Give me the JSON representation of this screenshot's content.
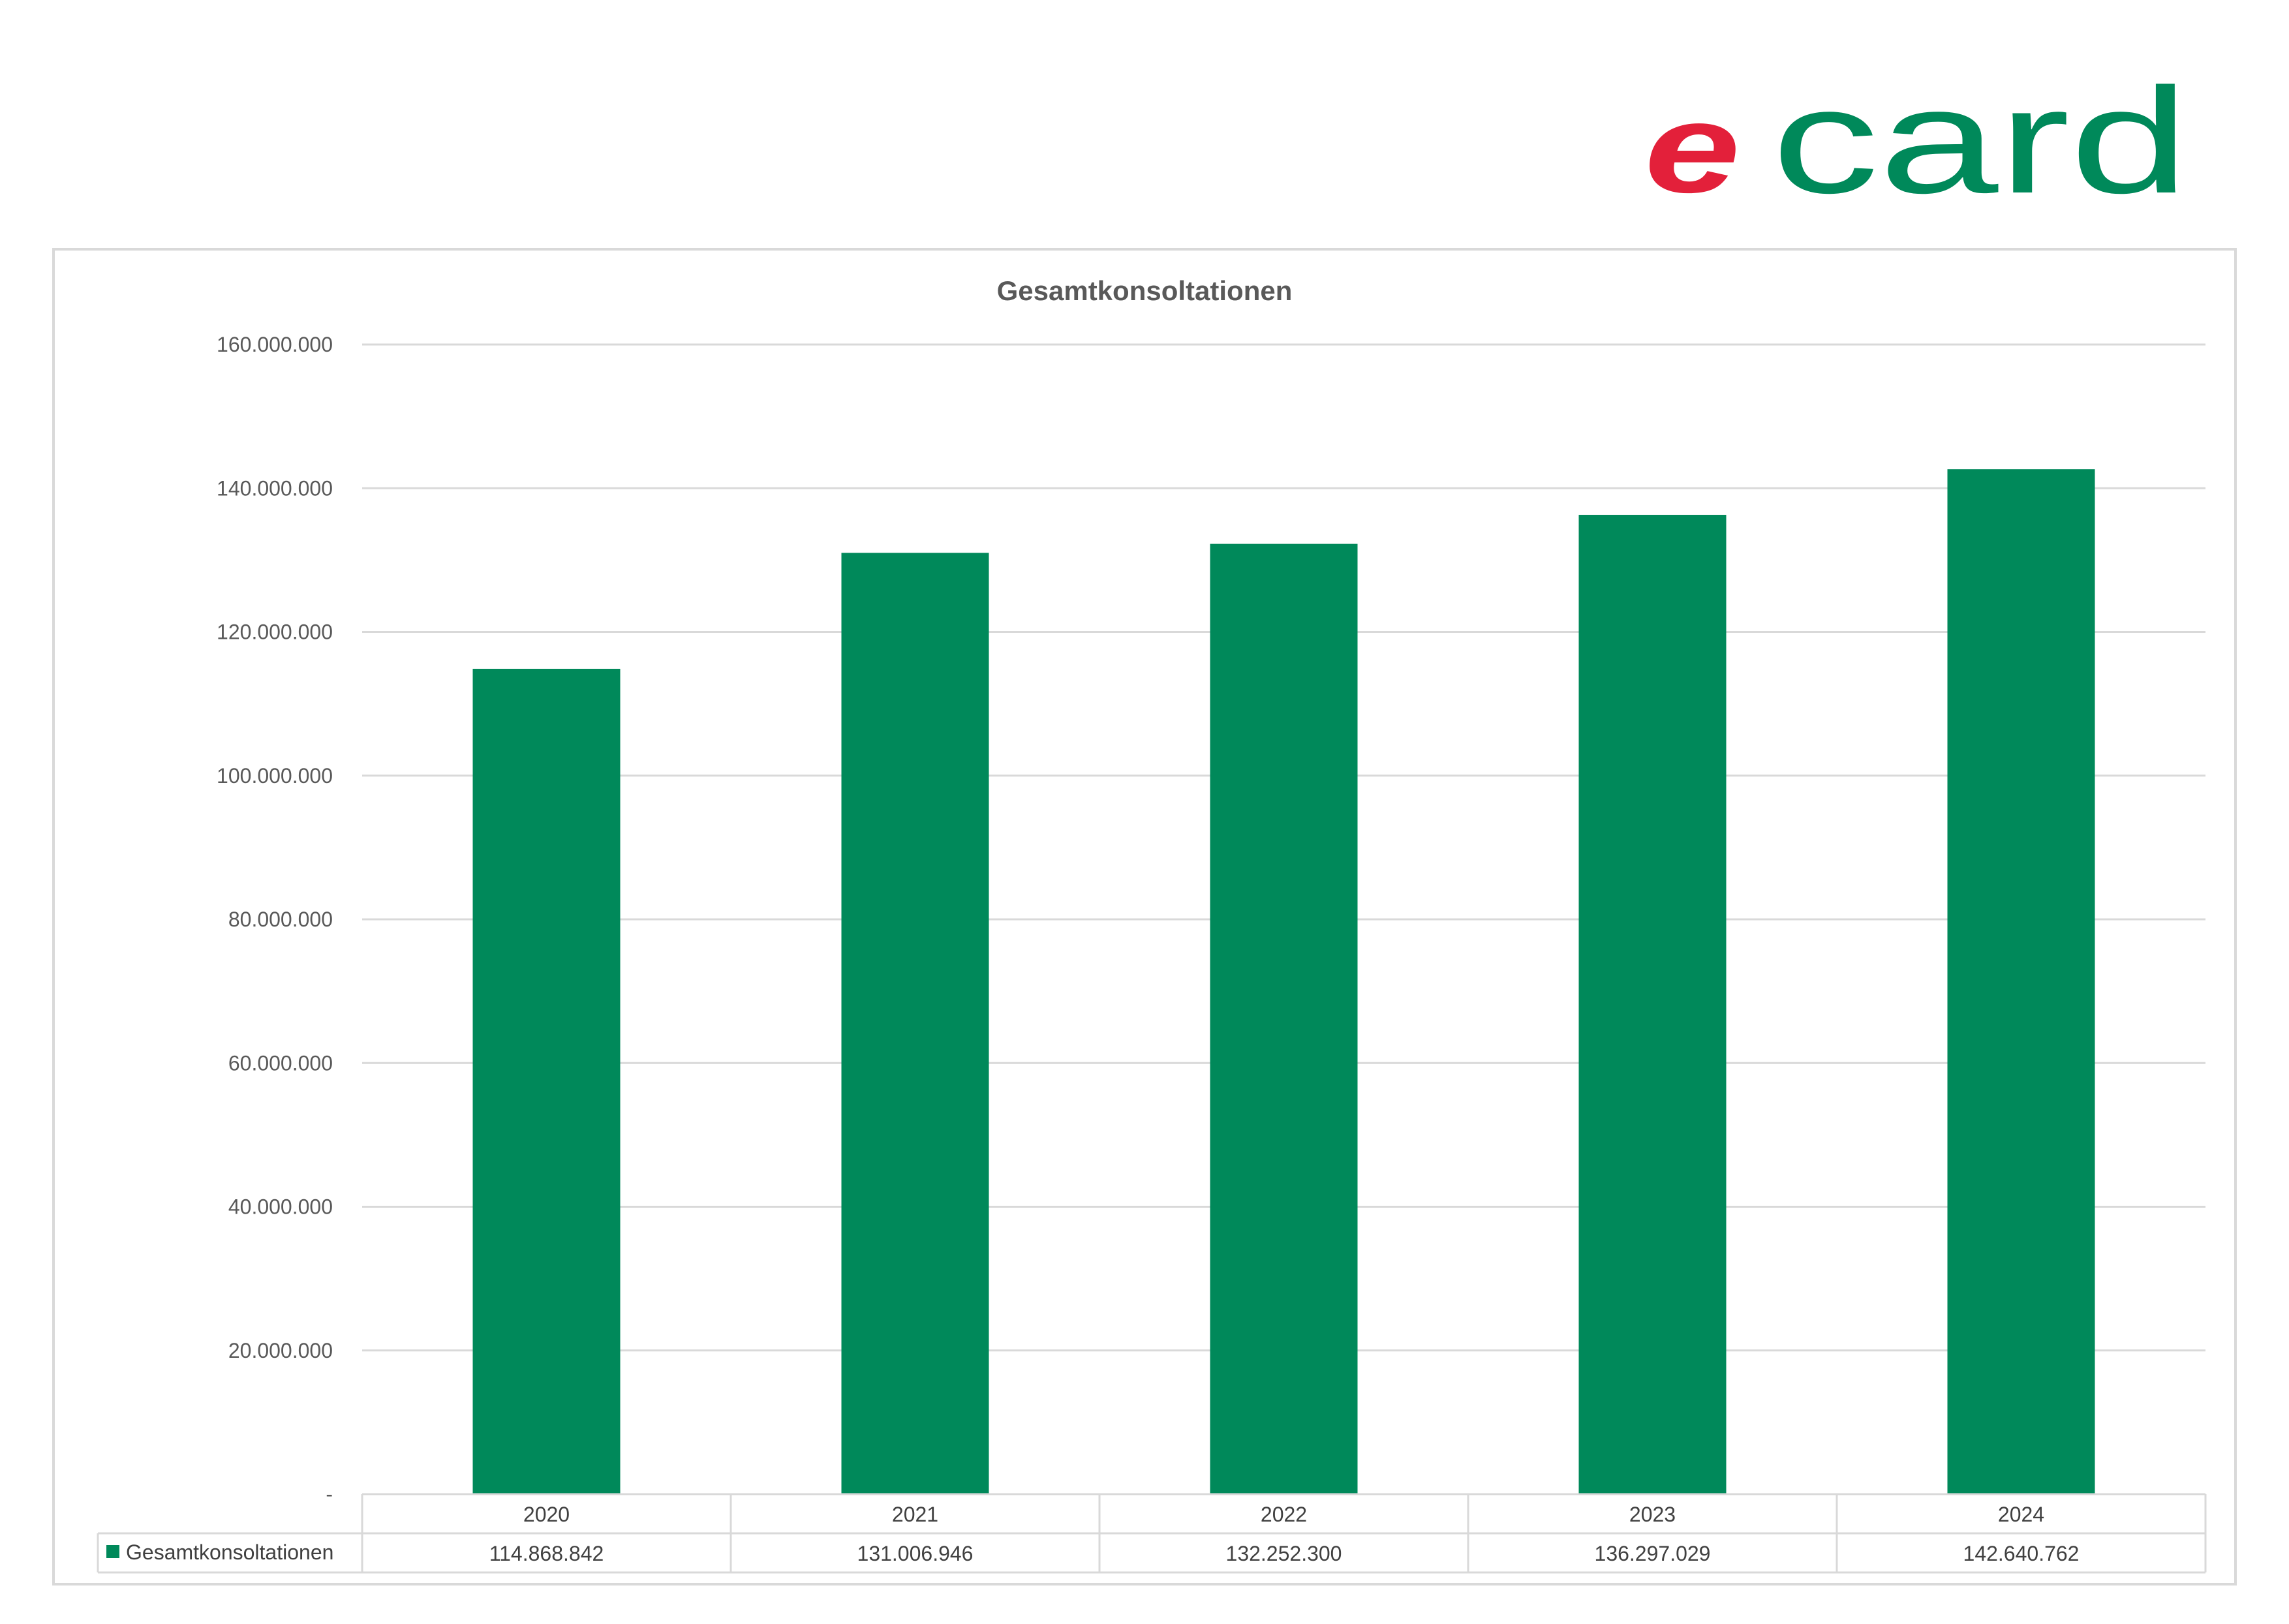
{
  "logo": {
    "prefix": "e",
    "word": "card",
    "colors": {
      "prefix": "#e3203a",
      "word": "#00895a"
    }
  },
  "chart_data": {
    "type": "bar",
    "title": "Gesamtkonsoltationen",
    "categories": [
      "2020",
      "2021",
      "2022",
      "2023",
      "2024"
    ],
    "series": [
      {
        "name": "Gesamtkonsoltationen",
        "values": [
          114868842,
          131006946,
          132252300,
          136297029,
          142640762
        ],
        "value_labels": [
          "114.868.842",
          "131.006.946",
          "132.252.300",
          "136.297.029",
          "142.640.762"
        ],
        "color": "#00895a"
      }
    ],
    "ylim": [
      0,
      160000000
    ],
    "yticks": [
      0,
      20000000,
      40000000,
      60000000,
      80000000,
      100000000,
      120000000,
      140000000,
      160000000
    ],
    "ytick_labels": [
      "-",
      "20.000.000",
      "40.000.000",
      "60.000.000",
      "80.000.000",
      "100.000.000",
      "120.000.000",
      "140.000.000",
      "160.000.000"
    ],
    "grid": true,
    "legend": "data-table-below"
  }
}
